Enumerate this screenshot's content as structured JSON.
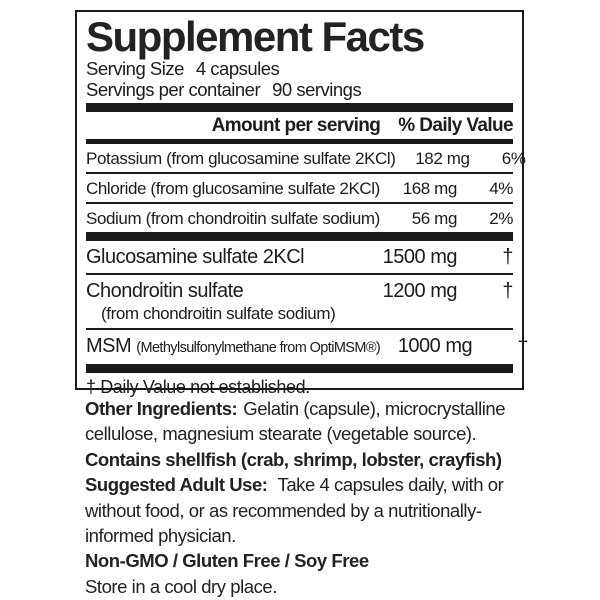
{
  "colors": {
    "ink": "#1a1a1a",
    "background": "#ffffff"
  },
  "panel": {
    "title": "Supplement Facts",
    "serving_size_label": "Serving Size",
    "serving_size_value": "4 capsules",
    "servings_label": "Servings per container",
    "servings_value": "90 servings",
    "header": {
      "amount": "Amount per serving",
      "daily_value": "% Daily Value"
    },
    "minerals": [
      {
        "name": "Potassium (from glucosamine sulfate 2KCl)",
        "amount": "182 mg",
        "dv": "6%"
      },
      {
        "name": "Chloride (from glucosamine sulfate 2KCl)",
        "amount": "168 mg",
        "dv": "4%"
      },
      {
        "name": "Sodium (from chondroitin sulfate sodium)",
        "amount": "56 mg",
        "dv": "2%"
      }
    ],
    "actives": [
      {
        "name": "Glucosamine sulfate 2KCl",
        "amount": "1500 mg",
        "dv": "†"
      },
      {
        "name": "Chondroitin sulfate",
        "sub_name": "(from chondroitin sulfate sodium)",
        "amount": "1200 mg",
        "dv": "†"
      },
      {
        "name": "MSM",
        "note": "(Methylsulfonylmethane from OptiMSM®)",
        "amount": "1000 mg",
        "dv": "†"
      }
    ],
    "footnote": "† Daily Value not established."
  },
  "below": {
    "other_ingredients_label": "Other Ingredients:",
    "other_ingredients_line1": "Gelatin (capsule), microcrystalline",
    "other_ingredients_line2": "cellulose, magnesium stearate (vegetable source).",
    "contains": "Contains shellfish (crab, shrimp, lobster, crayfish)",
    "suggested_use_label": "Suggested Adult Use:",
    "suggested_use_line1": "Take 4 capsules daily, with or",
    "suggested_use_line2": "without food, or as recommended by a nutritionally-",
    "suggested_use_line3": "informed physician.",
    "claims": "Non-GMO / Gluten Free / Soy Free",
    "storage": "Store in a cool dry place."
  }
}
